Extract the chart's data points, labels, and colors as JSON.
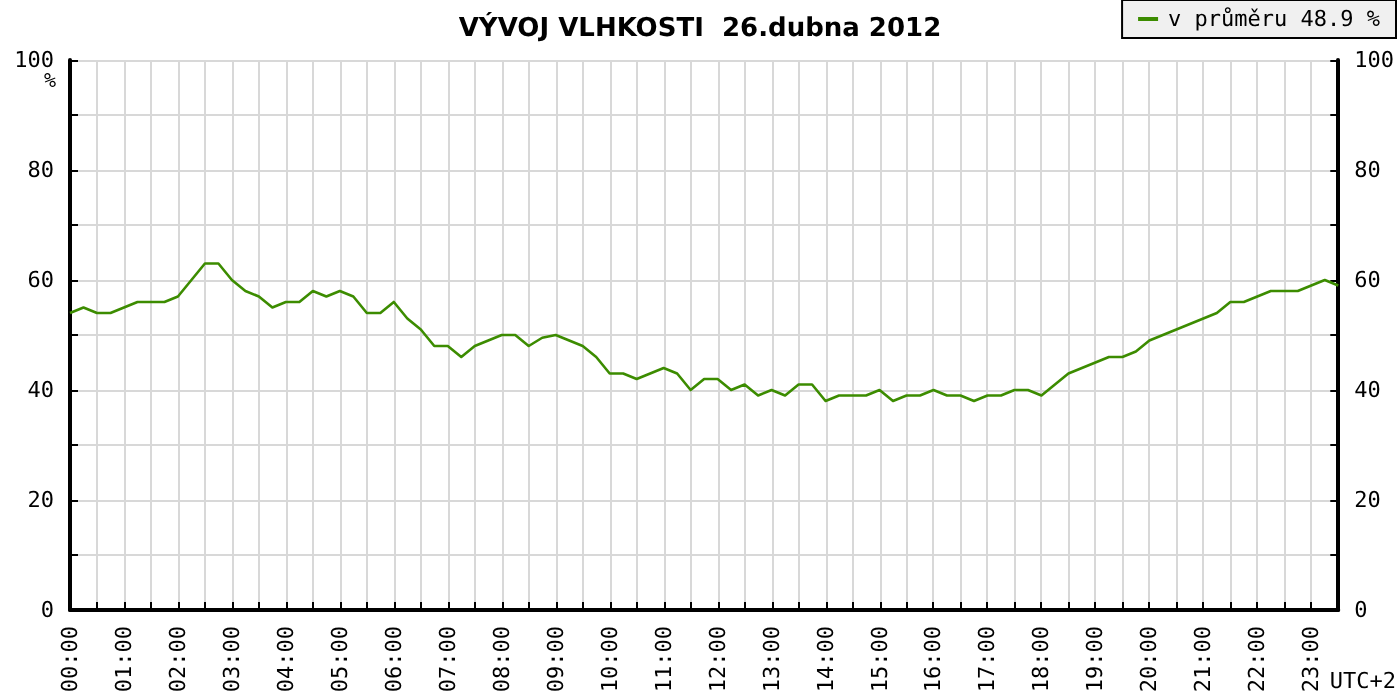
{
  "chart_data": {
    "type": "line",
    "title": "VÝVOJ VLHKOSTI  26.dubna 2012",
    "ylabel": "%",
    "annotations": [
      "UTC+2"
    ],
    "x": [
      0,
      0.25,
      0.5,
      0.75,
      1,
      1.25,
      1.5,
      1.75,
      2,
      2.25,
      2.5,
      2.75,
      3,
      3.25,
      3.5,
      3.75,
      4,
      4.25,
      4.5,
      4.75,
      5,
      5.25,
      5.5,
      5.75,
      6,
      6.25,
      6.5,
      6.75,
      7,
      7.25,
      7.5,
      7.75,
      8,
      8.25,
      8.5,
      8.75,
      9,
      9.25,
      9.5,
      9.75,
      10,
      10.25,
      10.5,
      10.75,
      11,
      11.25,
      11.5,
      11.75,
      12,
      12.25,
      12.5,
      12.75,
      13,
      13.25,
      13.5,
      13.75,
      14,
      14.25,
      14.5,
      14.75,
      15,
      15.25,
      15.5,
      15.75,
      16,
      16.25,
      16.5,
      16.75,
      17,
      17.25,
      17.5,
      17.75,
      18,
      18.25,
      18.5,
      18.75,
      19,
      19.25,
      19.5,
      19.75,
      20,
      20.25,
      20.5,
      20.75,
      21,
      21.25,
      21.5,
      21.75,
      22,
      22.25,
      22.5,
      22.75,
      23,
      23.25,
      23.5
    ],
    "series": [
      {
        "name": "v průměru 48.9 %",
        "color": "#3c8c00",
        "values": [
          54,
          55,
          54,
          54,
          55,
          56,
          56,
          56,
          57,
          60,
          63,
          63,
          60,
          58,
          57,
          55,
          56,
          56,
          58,
          57,
          58,
          57,
          54,
          54,
          56,
          53,
          51,
          48,
          48,
          46,
          48,
          49,
          50,
          50,
          48,
          49.5,
          50,
          49,
          48,
          46,
          43,
          43,
          42,
          43,
          44,
          43,
          40,
          42,
          42,
          40,
          41,
          39,
          40,
          39,
          41,
          41,
          38,
          39,
          39,
          39,
          40,
          38,
          39,
          39,
          40,
          39,
          39,
          38,
          39,
          39,
          40,
          40,
          39,
          41,
          43,
          44,
          45,
          46,
          46,
          47,
          49,
          50,
          51,
          52,
          53,
          54,
          56,
          56,
          57,
          58,
          58,
          58,
          59,
          60,
          59
        ]
      }
    ],
    "xlim": [
      0,
      23.5
    ],
    "xticks": [
      {
        "value": 0,
        "label": "00:00"
      },
      {
        "value": 0.5,
        "label": null
      },
      {
        "value": 1,
        "label": "01:00"
      },
      {
        "value": 1.5,
        "label": null
      },
      {
        "value": 2,
        "label": "02:00"
      },
      {
        "value": 2.5,
        "label": null
      },
      {
        "value": 3,
        "label": "03:00"
      },
      {
        "value": 3.5,
        "label": null
      },
      {
        "value": 4,
        "label": "04:00"
      },
      {
        "value": 4.5,
        "label": null
      },
      {
        "value": 5,
        "label": "05:00"
      },
      {
        "value": 5.5,
        "label": null
      },
      {
        "value": 6,
        "label": "06:00"
      },
      {
        "value": 6.5,
        "label": null
      },
      {
        "value": 7,
        "label": "07:00"
      },
      {
        "value": 7.5,
        "label": null
      },
      {
        "value": 8,
        "label": "08:00"
      },
      {
        "value": 8.5,
        "label": null
      },
      {
        "value": 9,
        "label": "09:00"
      },
      {
        "value": 9.5,
        "label": null
      },
      {
        "value": 10,
        "label": "10:00"
      },
      {
        "value": 10.5,
        "label": null
      },
      {
        "value": 11,
        "label": "11:00"
      },
      {
        "value": 11.5,
        "label": null
      },
      {
        "value": 12,
        "label": "12:00"
      },
      {
        "value": 12.5,
        "label": null
      },
      {
        "value": 13,
        "label": "13:00"
      },
      {
        "value": 13.5,
        "label": null
      },
      {
        "value": 14,
        "label": "14:00"
      },
      {
        "value": 14.5,
        "label": null
      },
      {
        "value": 15,
        "label": "15:00"
      },
      {
        "value": 15.5,
        "label": null
      },
      {
        "value": 16,
        "label": "16:00"
      },
      {
        "value": 16.5,
        "label": null
      },
      {
        "value": 17,
        "label": "17:00"
      },
      {
        "value": 17.5,
        "label": null
      },
      {
        "value": 18,
        "label": "18:00"
      },
      {
        "value": 18.5,
        "label": null
      },
      {
        "value": 19,
        "label": "19:00"
      },
      {
        "value": 19.5,
        "label": null
      },
      {
        "value": 20,
        "label": "20:00"
      },
      {
        "value": 20.5,
        "label": null
      },
      {
        "value": 21,
        "label": "21:00"
      },
      {
        "value": 21.5,
        "label": null
      },
      {
        "value": 22,
        "label": "22:00"
      },
      {
        "value": 22.5,
        "label": null
      },
      {
        "value": 23,
        "label": "23:00"
      },
      {
        "value": 23.5,
        "label": null
      }
    ],
    "ylim": [
      0,
      100
    ],
    "yticks": [
      0,
      {
        "value": 10,
        "label": null
      },
      20,
      {
        "value": 30,
        "label": null
      },
      40,
      {
        "value": 50,
        "label": null
      },
      60,
      {
        "value": 70,
        "label": null
      },
      80,
      {
        "value": 90,
        "label": null
      },
      100
    ],
    "y2lim": [
      0,
      100
    ],
    "y2ticks": [
      0,
      {
        "value": 10,
        "label": null
      },
      20,
      {
        "value": 30,
        "label": null
      },
      40,
      {
        "value": 50,
        "label": null
      },
      60,
      {
        "value": 70,
        "label": null
      },
      80,
      {
        "value": 90,
        "label": null
      },
      100
    ],
    "grid": true,
    "legend": "top right",
    "marker": "none",
    "line_style": "solid"
  }
}
